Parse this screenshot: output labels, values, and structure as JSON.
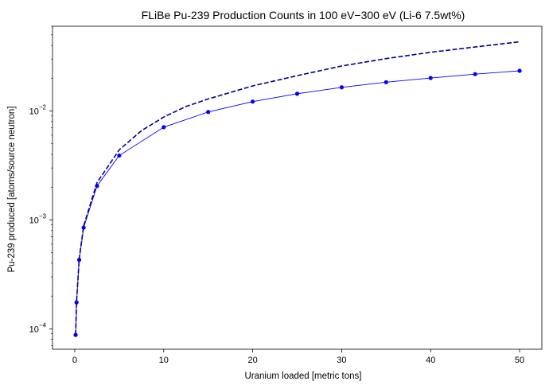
{
  "chart_data": {
    "type": "line",
    "title": "FLiBe Pu-239 Production Counts in 100 eV−300 eV (Li-6 7.5wt%)",
    "xlabel": "Uranium loaded [metric tons]",
    "ylabel": "Pu-239 produced [atoms/source neutron]",
    "xlim": [
      -2.5,
      52.5
    ],
    "ylim": [
      6.5e-05,
      0.06
    ],
    "yscale": "log",
    "grid": false,
    "x_ticks": [
      0,
      10,
      20,
      30,
      40,
      50
    ],
    "x_tick_labels": [
      "0",
      "10",
      "20",
      "30",
      "40",
      "50"
    ],
    "y_ticks": [
      0.0001,
      0.001,
      0.01
    ],
    "y_tick_labels": [
      {
        "base": "10",
        "exp": "−4"
      },
      {
        "base": "10",
        "exp": "−3"
      },
      {
        "base": "10",
        "exp": "−2"
      }
    ],
    "series": [
      {
        "style": "solid-with-markers",
        "color": "#0000ff",
        "x": [
          0.1,
          0.2,
          0.5,
          1,
          2.5,
          5,
          10,
          15,
          20,
          25,
          30,
          35,
          40,
          45,
          50
        ],
        "y": [
          8.8e-05,
          0.000175,
          0.00043,
          0.00085,
          0.00205,
          0.0039,
          0.0071,
          0.0098,
          0.0122,
          0.0144,
          0.0165,
          0.0184,
          0.0201,
          0.0218,
          0.0234
        ]
      },
      {
        "style": "dashed",
        "color": "#00008b",
        "x": [
          0.1,
          0.2,
          0.5,
          1,
          2.5,
          5,
          7.5,
          10,
          12.5,
          15,
          20,
          25,
          30,
          35,
          40,
          45,
          50
        ],
        "y": [
          8.8e-05,
          0.000176,
          0.00044,
          0.00088,
          0.0022,
          0.0044,
          0.0066,
          0.0088,
          0.011,
          0.0129,
          0.017,
          0.0211,
          0.0259,
          0.0303,
          0.0346,
          0.0387,
          0.0432
        ]
      }
    ]
  }
}
